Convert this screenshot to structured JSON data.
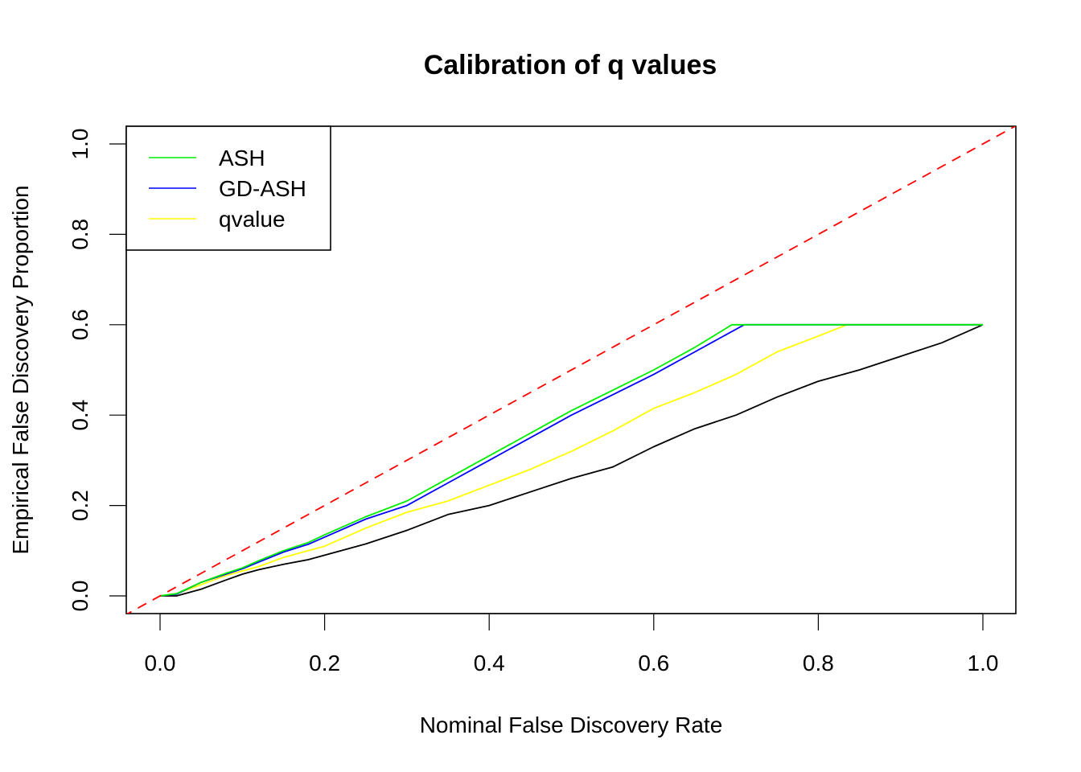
{
  "chart_data": {
    "type": "line",
    "title": "Calibration of q values",
    "xlabel": "Nominal False Discovery Rate",
    "ylabel": "Empirical False Discovery Proportion",
    "xlim": [
      0,
      1
    ],
    "ylim": [
      0,
      1
    ],
    "x_ticks": [
      "0.0",
      "0.2",
      "0.4",
      "0.6",
      "0.8",
      "1.0"
    ],
    "y_ticks": [
      "0.0",
      "0.2",
      "0.4",
      "0.6",
      "0.8",
      "1.0"
    ],
    "grid": false,
    "legend_position": "top-left",
    "reference_line": {
      "name": "y = x",
      "color": "#ff0000",
      "style": "dashed"
    },
    "series": [
      {
        "name": "ASH",
        "color": "#00ee00",
        "in_legend": true,
        "x": [
          0.0,
          0.02,
          0.05,
          0.08,
          0.1,
          0.12,
          0.15,
          0.18,
          0.2,
          0.25,
          0.3,
          0.35,
          0.4,
          0.45,
          0.5,
          0.55,
          0.6,
          0.65,
          0.695,
          0.75,
          0.8,
          0.85,
          0.9,
          0.95,
          1.0
        ],
        "y": [
          0.0,
          0.005,
          0.03,
          0.05,
          0.062,
          0.078,
          0.1,
          0.118,
          0.135,
          0.175,
          0.21,
          0.26,
          0.31,
          0.36,
          0.41,
          0.455,
          0.5,
          0.55,
          0.6,
          0.6,
          0.6,
          0.6,
          0.6,
          0.6,
          0.6
        ]
      },
      {
        "name": "GD-ASH",
        "color": "#0000ff",
        "in_legend": true,
        "x": [
          0.0,
          0.02,
          0.05,
          0.08,
          0.1,
          0.12,
          0.15,
          0.18,
          0.2,
          0.25,
          0.3,
          0.35,
          0.4,
          0.45,
          0.5,
          0.55,
          0.6,
          0.65,
          0.71,
          0.75,
          0.8,
          0.85,
          0.9,
          0.95,
          1.0
        ],
        "y": [
          0.0,
          0.004,
          0.03,
          0.048,
          0.06,
          0.075,
          0.097,
          0.114,
          0.13,
          0.17,
          0.2,
          0.25,
          0.3,
          0.35,
          0.4,
          0.445,
          0.49,
          0.54,
          0.6,
          0.6,
          0.6,
          0.6,
          0.6,
          0.6,
          0.6
        ]
      },
      {
        "name": "qvalue",
        "color": "#ffff00",
        "in_legend": true,
        "x": [
          0.0,
          0.02,
          0.05,
          0.08,
          0.1,
          0.12,
          0.15,
          0.18,
          0.2,
          0.25,
          0.3,
          0.35,
          0.4,
          0.45,
          0.5,
          0.55,
          0.6,
          0.65,
          0.7,
          0.75,
          0.8,
          0.835,
          0.9,
          0.95,
          1.0
        ],
        "y": [
          0.0,
          0.005,
          0.025,
          0.045,
          0.055,
          0.065,
          0.085,
          0.1,
          0.11,
          0.15,
          0.185,
          0.21,
          0.245,
          0.28,
          0.32,
          0.365,
          0.415,
          0.45,
          0.49,
          0.54,
          0.575,
          0.6,
          0.6,
          0.6,
          0.6
        ]
      },
      {
        "name": "Empirical (black)",
        "color": "#000000",
        "in_legend": false,
        "x": [
          0.0,
          0.02,
          0.05,
          0.08,
          0.1,
          0.12,
          0.15,
          0.18,
          0.2,
          0.25,
          0.3,
          0.35,
          0.4,
          0.45,
          0.5,
          0.55,
          0.6,
          0.65,
          0.7,
          0.75,
          0.8,
          0.85,
          0.9,
          0.95,
          1.0
        ],
        "y": [
          0.0,
          0.0,
          0.015,
          0.035,
          0.048,
          0.058,
          0.07,
          0.08,
          0.09,
          0.115,
          0.145,
          0.18,
          0.2,
          0.23,
          0.26,
          0.285,
          0.33,
          0.37,
          0.4,
          0.44,
          0.475,
          0.5,
          0.53,
          0.56,
          0.6
        ]
      }
    ]
  }
}
